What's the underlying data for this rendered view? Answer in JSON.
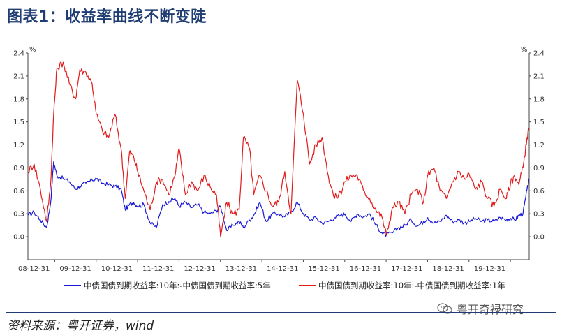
{
  "figure": {
    "title": "图表1：收益率曲线不断变陡",
    "source": "资料来源：粤开证券，wind",
    "watermark": "粤开奇禄研究"
  },
  "colors": {
    "series1": "#1a1ad6",
    "series2": "#e21b1b",
    "title": "#1f3d73"
  },
  "chart_data": {
    "type": "line",
    "y_unit_left": "%",
    "y_unit_right": "%",
    "ylim": [
      -0.3,
      2.4
    ],
    "yticks": [
      "2.4",
      "2.1",
      "1.8",
      "1.5",
      "1.2",
      "0.9",
      "0.6",
      "0.3",
      "0.0"
    ],
    "xticks": [
      "08-12-31",
      "09-12-31",
      "10-12-31",
      "11-12-31",
      "12-12-31",
      "13-12-31",
      "14-12-31",
      "15-12-31",
      "16-12-31",
      "17-12-31",
      "18-12-31",
      "19-12-31"
    ],
    "xlim": [
      2008.35,
      2020.45
    ],
    "grid": false,
    "legend_position": "bottom",
    "series": [
      {
        "name": "中债国债到期收益率:10年:-中债国债到期收益率:5年",
        "x": [
          2008.35,
          2008.5,
          2008.65,
          2008.8,
          2008.9,
          2008.97,
          2009.05,
          2009.2,
          2009.35,
          2009.5,
          2009.6,
          2009.75,
          2009.9,
          2010.0,
          2010.15,
          2010.3,
          2010.45,
          2010.6,
          2010.7,
          2010.8,
          2010.9,
          2011.0,
          2011.15,
          2011.3,
          2011.45,
          2011.6,
          2011.75,
          2011.9,
          2012.0,
          2012.15,
          2012.3,
          2012.45,
          2012.6,
          2012.75,
          2012.9,
          2013.0,
          2013.15,
          2013.3,
          2013.45,
          2013.55,
          2013.7,
          2013.8,
          2013.95,
          2014.1,
          2014.25,
          2014.4,
          2014.55,
          2014.7,
          2014.85,
          2015.0,
          2015.15,
          2015.3,
          2015.45,
          2015.6,
          2015.75,
          2015.9,
          2016.0,
          2016.15,
          2016.3,
          2016.45,
          2016.6,
          2016.75,
          2016.9,
          2017.0,
          2017.15,
          2017.3,
          2017.45,
          2017.6,
          2017.75,
          2017.9,
          2018.0,
          2018.15,
          2018.3,
          2018.45,
          2018.6,
          2018.75,
          2018.9,
          2019.0,
          2019.15,
          2019.3,
          2019.45,
          2019.6,
          2019.75,
          2019.9,
          2020.0,
          2020.1,
          2020.2,
          2020.3,
          2020.4,
          2020.45
        ],
        "values": [
          0.28,
          0.32,
          0.22,
          0.12,
          0.45,
          0.98,
          0.8,
          0.76,
          0.72,
          0.62,
          0.66,
          0.7,
          0.74,
          0.76,
          0.7,
          0.68,
          0.66,
          0.62,
          0.35,
          0.42,
          0.45,
          0.4,
          0.42,
          0.18,
          0.12,
          0.42,
          0.46,
          0.5,
          0.4,
          0.45,
          0.38,
          0.42,
          0.32,
          0.3,
          0.34,
          0.4,
          0.08,
          0.15,
          0.2,
          0.12,
          0.22,
          0.28,
          0.45,
          0.2,
          0.3,
          0.3,
          0.26,
          0.32,
          0.45,
          0.3,
          0.22,
          0.25,
          0.18,
          0.2,
          0.25,
          0.28,
          0.3,
          0.2,
          0.3,
          0.26,
          0.3,
          0.15,
          0.05,
          0.02,
          0.05,
          0.12,
          0.15,
          0.22,
          0.14,
          0.2,
          0.25,
          0.18,
          0.2,
          0.28,
          0.2,
          0.22,
          0.18,
          0.2,
          0.24,
          0.2,
          0.22,
          0.2,
          0.25,
          0.22,
          0.24,
          0.22,
          0.28,
          0.3,
          0.62,
          0.75
        ]
      },
      {
        "name": "中债国债到期收益率:10年:-中债国债到期收益率:1年",
        "x": [
          2008.35,
          2008.5,
          2008.65,
          2008.8,
          2008.9,
          2008.97,
          2009.05,
          2009.2,
          2009.35,
          2009.5,
          2009.6,
          2009.75,
          2009.9,
          2010.0,
          2010.15,
          2010.3,
          2010.45,
          2010.6,
          2010.7,
          2010.8,
          2010.9,
          2011.0,
          2011.15,
          2011.3,
          2011.45,
          2011.6,
          2011.75,
          2011.9,
          2012.0,
          2012.15,
          2012.3,
          2012.45,
          2012.6,
          2012.75,
          2012.9,
          2013.0,
          2013.15,
          2013.3,
          2013.45,
          2013.55,
          2013.7,
          2013.8,
          2013.95,
          2014.1,
          2014.25,
          2014.4,
          2014.55,
          2014.7,
          2014.85,
          2015.0,
          2015.15,
          2015.3,
          2015.45,
          2015.6,
          2015.75,
          2015.9,
          2016.0,
          2016.15,
          2016.3,
          2016.45,
          2016.6,
          2016.75,
          2016.9,
          2017.0,
          2017.15,
          2017.3,
          2017.45,
          2017.6,
          2017.75,
          2017.9,
          2018.0,
          2018.15,
          2018.3,
          2018.45,
          2018.6,
          2018.75,
          2018.9,
          2019.0,
          2019.15,
          2019.3,
          2019.45,
          2019.6,
          2019.75,
          2019.9,
          2020.0,
          2020.1,
          2020.2,
          2020.3,
          2020.4,
          2020.45
        ],
        "values": [
          0.85,
          0.95,
          0.62,
          0.2,
          0.7,
          1.6,
          2.2,
          2.28,
          2.0,
          1.8,
          2.18,
          2.15,
          2.0,
          1.6,
          1.38,
          1.3,
          1.6,
          1.15,
          0.5,
          1.1,
          1.05,
          0.85,
          0.6,
          0.35,
          0.72,
          0.75,
          0.55,
          0.8,
          1.15,
          0.55,
          0.72,
          0.6,
          0.8,
          0.65,
          0.55,
          0.0,
          0.45,
          0.3,
          0.35,
          1.3,
          1.15,
          0.55,
          0.8,
          0.6,
          0.4,
          0.45,
          0.85,
          0.3,
          2.05,
          1.6,
          0.95,
          1.2,
          1.3,
          0.8,
          0.5,
          0.58,
          0.72,
          0.8,
          0.8,
          0.6,
          0.5,
          0.35,
          0.25,
          0.02,
          0.38,
          0.45,
          0.3,
          0.55,
          0.62,
          0.45,
          0.8,
          0.9,
          0.6,
          0.5,
          0.72,
          0.85,
          0.75,
          0.82,
          0.62,
          0.72,
          0.5,
          0.4,
          0.62,
          0.5,
          0.7,
          0.8,
          0.68,
          0.9,
          1.3,
          1.42
        ]
      }
    ]
  }
}
